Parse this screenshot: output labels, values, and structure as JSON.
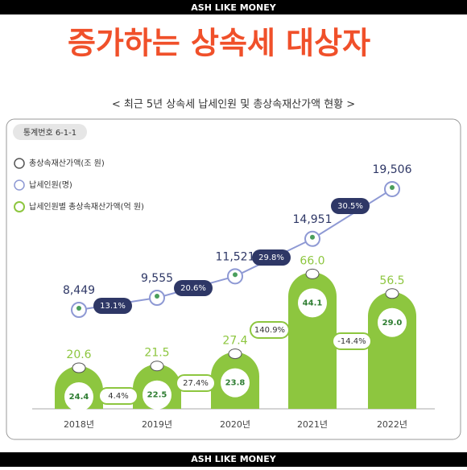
{
  "header": {
    "brand": "ASH LIKE MONEY",
    "title": "증가하는 상속세 대상자",
    "footer_brand": "ASH LIKE MONEY"
  },
  "chart_data": {
    "type": "bar",
    "subtitle": "< 최근 5년 상속세 납세인원 및 총상속재산가액 현황 >",
    "badge": "통계번호 6-1-1",
    "categories": [
      "2018년",
      "2019년",
      "2020년",
      "2021년",
      "2022년"
    ],
    "series": [
      {
        "name": "총상속재산가액(조 원)",
        "type": "bar",
        "color": "#8dc63f",
        "values": [
          20.6,
          21.5,
          27.4,
          66,
          56.5
        ],
        "value_labels": [
          "20.6",
          "21.5",
          "27.4",
          "66.0",
          "56.5"
        ],
        "growth": [
          4.4,
          27.4,
          140.9,
          -14.4
        ],
        "growth_labels": [
          "4.4%",
          "27.4%",
          "140.9%",
          "-14.4%"
        ]
      },
      {
        "name": "납세인원(명)",
        "type": "line",
        "color": "#8e99d4",
        "values": [
          8449,
          9555,
          11521,
          14951,
          19506
        ],
        "value_labels": [
          "8,449",
          "9,555",
          "11,521",
          "14,951",
          "19,506"
        ],
        "growth": [
          13.1,
          20.6,
          29.8,
          30.5
        ],
        "growth_labels": [
          "13.1%",
          "20.6%",
          "29.8%",
          "30.5%"
        ]
      },
      {
        "name": "납세인원별 총상속재산가액(억 원)",
        "type": "label",
        "color": "#8dc63f",
        "values": [
          24.4,
          22.5,
          23.8,
          44.1,
          29
        ],
        "value_labels": [
          "24.4",
          "22.5",
          "23.8",
          "44.1",
          "29.0"
        ]
      }
    ]
  }
}
